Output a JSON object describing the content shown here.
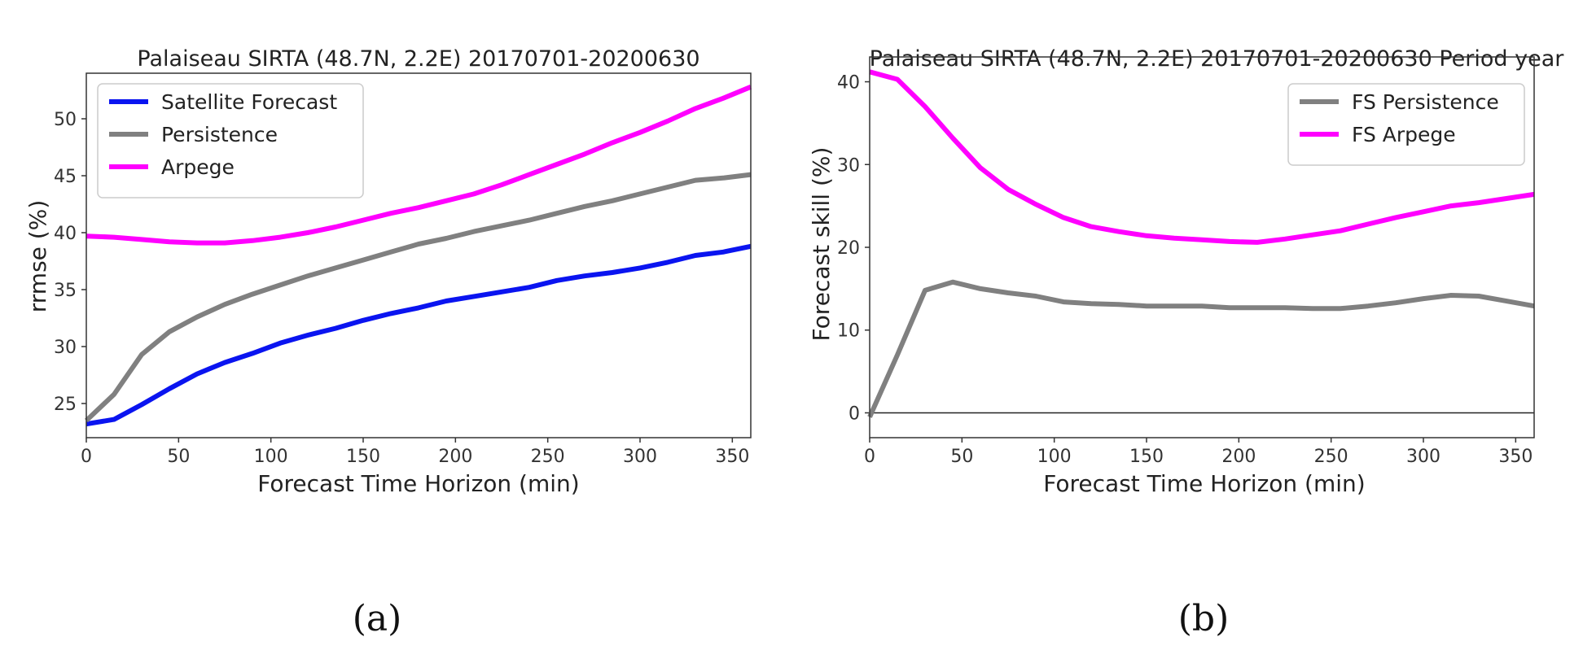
{
  "chart_data": [
    {
      "type": "line",
      "title": "Palaiseau SIRTA (48.7N, 2.2E) 20170701-20200630",
      "xlabel": "Forecast Time Horizon (min)",
      "ylabel": "rrmse (%)",
      "xlim": [
        0,
        360
      ],
      "ylim": [
        22,
        54
      ],
      "xticks": [
        0,
        50,
        100,
        150,
        200,
        250,
        300,
        350
      ],
      "yticks": [
        25,
        30,
        35,
        40,
        45,
        50
      ],
      "panel_label": "(a)",
      "legend_position": "top-left",
      "x": [
        0,
        15,
        30,
        45,
        60,
        75,
        90,
        105,
        120,
        135,
        150,
        165,
        180,
        195,
        210,
        225,
        240,
        255,
        270,
        285,
        300,
        315,
        330,
        345,
        360
      ],
      "series": [
        {
          "name": "Satellite Forecast",
          "color": "#0a14f0",
          "values": [
            23.2,
            23.6,
            24.9,
            26.3,
            27.6,
            28.6,
            29.4,
            30.3,
            31.0,
            31.6,
            32.3,
            32.9,
            33.4,
            34.0,
            34.4,
            34.8,
            35.2,
            35.8,
            36.2,
            36.5,
            36.9,
            37.4,
            38.0,
            38.3,
            38.8
          ]
        },
        {
          "name": "Persistence",
          "color": "#808080",
          "values": [
            23.5,
            25.8,
            29.3,
            31.3,
            32.6,
            33.7,
            34.6,
            35.4,
            36.2,
            36.9,
            37.6,
            38.3,
            39.0,
            39.5,
            40.1,
            40.6,
            41.1,
            41.7,
            42.3,
            42.8,
            43.4,
            44.0,
            44.6,
            44.8,
            45.1
          ]
        },
        {
          "name": "Arpege",
          "color": "#ff00ff",
          "values": [
            39.7,
            39.6,
            39.4,
            39.2,
            39.1,
            39.1,
            39.3,
            39.6,
            40.0,
            40.5,
            41.1,
            41.7,
            42.2,
            42.8,
            43.4,
            44.2,
            45.1,
            46.0,
            46.9,
            47.9,
            48.8,
            49.8,
            50.9,
            51.8,
            52.8
          ]
        }
      ]
    },
    {
      "type": "line",
      "title": "Palaiseau SIRTA (48.7N, 2.2E) 20170701-20200630 Period year",
      "xlabel": "Forecast Time Horizon (min)",
      "ylabel": "Forecast skill (%)",
      "xlim": [
        0,
        360
      ],
      "ylim": [
        -3,
        43
      ],
      "xticks": [
        0,
        50,
        100,
        150,
        200,
        250,
        300,
        350
      ],
      "yticks": [
        0,
        10,
        20,
        30,
        40
      ],
      "zero_line": 0,
      "panel_label": "(b)",
      "legend_position": "top-right",
      "x": [
        0,
        15,
        30,
        45,
        60,
        75,
        90,
        105,
        120,
        135,
        150,
        165,
        180,
        195,
        210,
        225,
        240,
        255,
        270,
        285,
        300,
        315,
        330,
        345,
        360
      ],
      "series": [
        {
          "name": "FS Persistence",
          "color": "#808080",
          "values": [
            -0.5,
            7.0,
            14.8,
            15.8,
            15.0,
            14.5,
            14.1,
            13.4,
            13.2,
            13.1,
            12.9,
            12.9,
            12.9,
            12.7,
            12.7,
            12.7,
            12.6,
            12.6,
            12.9,
            13.3,
            13.8,
            14.2,
            14.1,
            13.5,
            12.9
          ]
        },
        {
          "name": "FS Arpege",
          "color": "#ff00ff",
          "values": [
            41.2,
            40.3,
            37.0,
            33.2,
            29.6,
            27.0,
            25.2,
            23.6,
            22.5,
            21.9,
            21.4,
            21.1,
            20.9,
            20.7,
            20.6,
            21.0,
            21.5,
            22.0,
            22.8,
            23.6,
            24.3,
            25.0,
            25.4,
            25.9,
            26.4
          ]
        }
      ]
    }
  ]
}
